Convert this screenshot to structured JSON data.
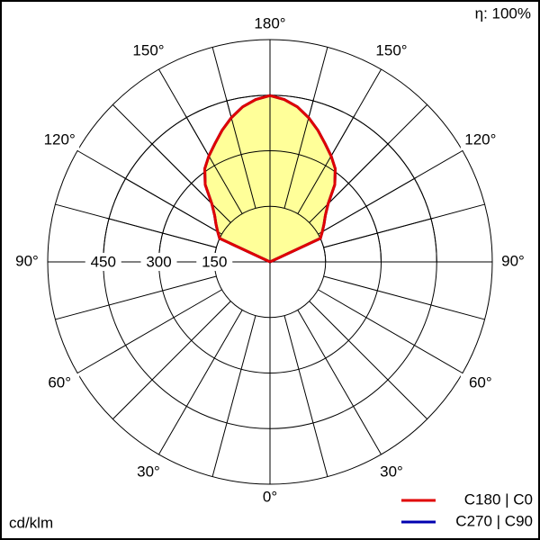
{
  "chart_data": {
    "type": "polar",
    "efficiency": "η: 100%",
    "unit": "cd/klm",
    "x": [
      180,
      175,
      170,
      165,
      160,
      155,
      150,
      145,
      140,
      135,
      130,
      125,
      120,
      115,
      110
    ],
    "series": [
      {
        "name": "C270 | C90",
        "color": "#0000b0",
        "values": [
          449,
          440,
          425,
          403,
          378,
          352,
          330,
          307,
          272,
          222,
          195,
          178,
          163,
          150,
          0
        ]
      },
      {
        "name": "C180 | C0",
        "color": "#e00000",
        "values": [
          449,
          440,
          425,
          403,
          378,
          352,
          330,
          307,
          272,
          222,
          195,
          178,
          163,
          150,
          0
        ]
      }
    ],
    "fill": "#ffff99",
    "rlim": [
      0,
      600
    ],
    "rticks": [
      150,
      300,
      450
    ],
    "angle_ticks": [
      {
        "value": 0,
        "label": "0°"
      },
      {
        "value": 30,
        "label": "30°"
      },
      {
        "value": 60,
        "label": "60°"
      },
      {
        "value": 90,
        "label": "90°"
      },
      {
        "value": 120,
        "label": "120°"
      },
      {
        "value": 150,
        "label": "150°"
      },
      {
        "value": 180,
        "label": "180°"
      }
    ]
  }
}
